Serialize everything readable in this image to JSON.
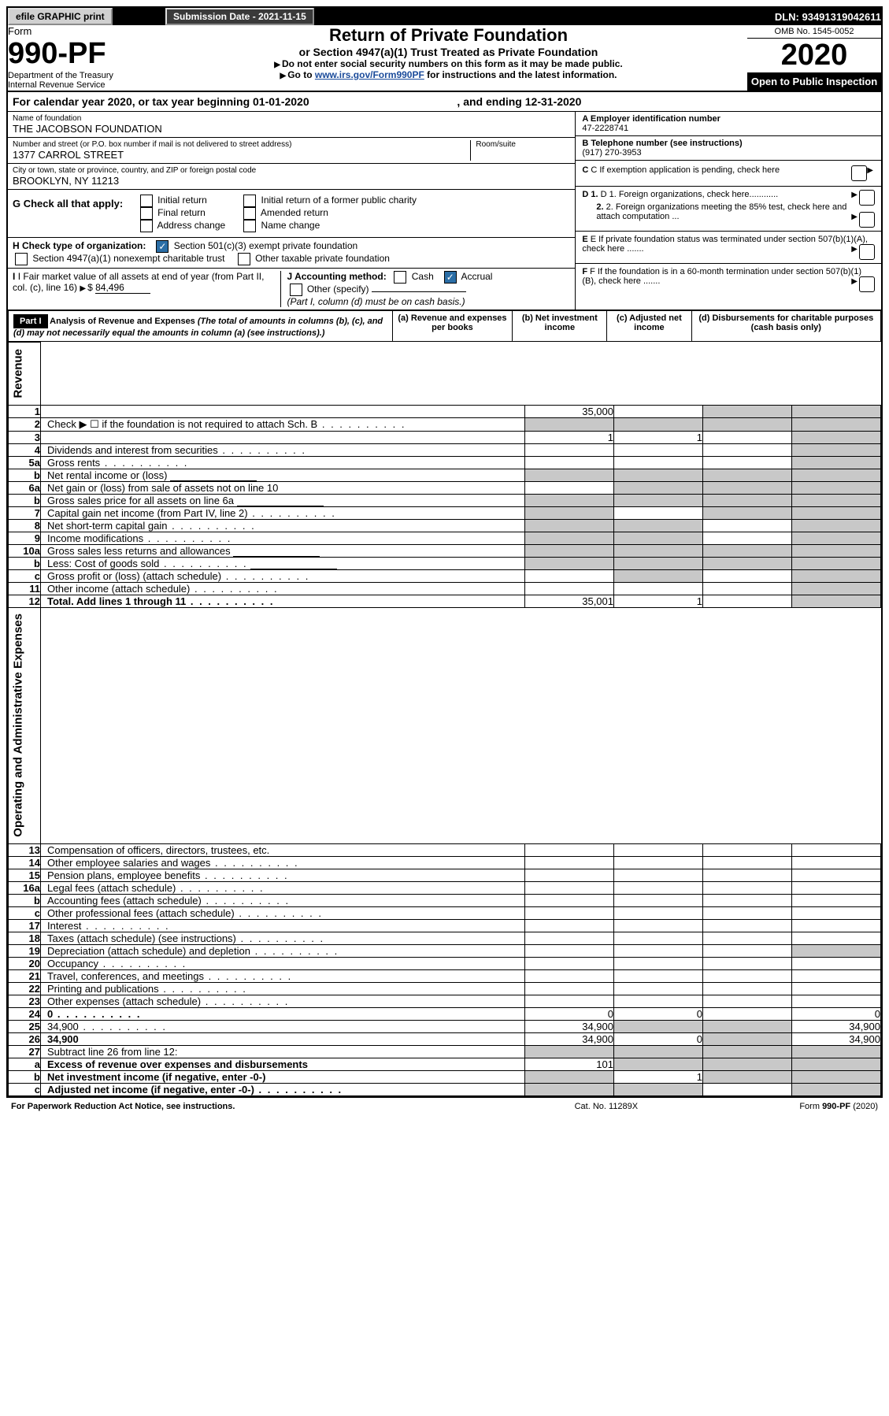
{
  "topbar": {
    "efile": "efile GRAPHIC print",
    "subm_label": "Submission Date - 2021-11-15",
    "dln": "DLN: 93491319042611"
  },
  "header": {
    "form_word": "Form",
    "form_num": "990-PF",
    "dept": "Department of the Treasury\nInternal Revenue Service",
    "title": "Return of Private Foundation",
    "subtitle": "or Section 4947(a)(1) Trust Treated as Private Foundation",
    "instr1": "Do not enter social security numbers on this form as it may be made public.",
    "instr2_pre": "Go to ",
    "instr2_link": "www.irs.gov/Form990PF",
    "instr2_post": " for instructions and the latest information.",
    "omb": "OMB No. 1545-0052",
    "year": "2020",
    "pub": "Open to Public Inspection"
  },
  "cal": {
    "text_pre": "For calendar year 2020, or tax year beginning ",
    "begin": "01-01-2020",
    "mid": ", and ending ",
    "end": "12-31-2020"
  },
  "entity": {
    "name_label": "Name of foundation",
    "name": "THE JACOBSON FOUNDATION",
    "addr_label": "Number and street (or P.O. box number if mail is not delivered to street address)",
    "addr": "1377 CARROL STREET",
    "room_label": "Room/suite",
    "city_label": "City or town, state or province, country, and ZIP or foreign postal code",
    "city": "BROOKLYN, NY  11213",
    "A_label": "A Employer identification number",
    "A": "47-2228741",
    "B_label": "B Telephone number (see instructions)",
    "B": "(917) 270-3953",
    "C": "C If exemption application is pending, check here",
    "D1": "D 1. Foreign organizations, check here............",
    "D2": "2. Foreign organizations meeting the 85% test, check here and attach computation ...",
    "E": "E  If private foundation status was terminated under section 507(b)(1)(A), check here .......",
    "F": "F  If the foundation is in a 60-month termination under section 507(b)(1)(B), check here .......",
    "G_label": "G Check all that apply:",
    "G_opts": [
      "Initial return",
      "Final return",
      "Address change",
      "Initial return of a former public charity",
      "Amended return",
      "Name change"
    ],
    "H_label": "H Check type of organization:",
    "H_opt1": "Section 501(c)(3) exempt private foundation",
    "H_opt2": "Section 4947(a)(1) nonexempt charitable trust",
    "H_opt3": "Other taxable private foundation",
    "I_label": "I Fair market value of all assets at end of year (from Part II, col. (c), line 16)",
    "I_val": "84,496",
    "J_label": "J Accounting method:",
    "J_cash": "Cash",
    "J_accr": "Accrual",
    "J_other": "Other (specify)",
    "J_note": "(Part I, column (d) must be on cash basis.)"
  },
  "part1": {
    "label": "Part I",
    "title": "Analysis of Revenue and Expenses",
    "desc": "(The total of amounts in columns (b), (c), and (d) may not necessarily equal the amounts in column (a) (see instructions).)",
    "col_a": "(a)  Revenue and expenses per books",
    "col_b": "(b)  Net investment income",
    "col_c": "(c)  Adjusted net income",
    "col_d": "(d)  Disbursements for charitable purposes (cash basis only)"
  },
  "sections": {
    "revenue": "Revenue",
    "opex": "Operating and Administrative Expenses"
  },
  "rows": [
    {
      "n": "1",
      "d": "",
      "a": "35,000",
      "b": "",
      "c": "",
      "shade": [
        "c",
        "d"
      ]
    },
    {
      "n": "2",
      "d": "Check ▶ ☐ if the foundation is not required to attach Sch. B",
      "dots": true,
      "vals": false,
      "shade": [
        "a",
        "b",
        "c",
        "d"
      ]
    },
    {
      "n": "3",
      "d": "",
      "a": "1",
      "b": "1",
      "c": "",
      "shade": [
        "d"
      ]
    },
    {
      "n": "4",
      "d": "Dividends and interest from securities",
      "dots": true,
      "shade": [
        "d"
      ]
    },
    {
      "n": "5a",
      "d": "Gross rents",
      "dots": true,
      "shade": [
        "d"
      ]
    },
    {
      "n": "b",
      "d": "Net rental income or (loss)",
      "line": true,
      "shade": [
        "a",
        "b",
        "c",
        "d"
      ]
    },
    {
      "n": "6a",
      "d": "Net gain or (loss) from sale of assets not on line 10",
      "shade": [
        "b",
        "c",
        "d"
      ]
    },
    {
      "n": "b",
      "d": "Gross sales price for all assets on line 6a",
      "line": true,
      "shade": [
        "a",
        "b",
        "c",
        "d"
      ]
    },
    {
      "n": "7",
      "d": "Capital gain net income (from Part IV, line 2)",
      "dots": true,
      "shade": [
        "a",
        "c",
        "d"
      ]
    },
    {
      "n": "8",
      "d": "Net short-term capital gain",
      "dots": true,
      "shade": [
        "a",
        "b",
        "d"
      ]
    },
    {
      "n": "9",
      "d": "Income modifications",
      "dots": true,
      "shade": [
        "a",
        "b",
        "d"
      ]
    },
    {
      "n": "10a",
      "d": "Gross sales less returns and allowances",
      "line": true,
      "shade": [
        "a",
        "b",
        "c",
        "d"
      ]
    },
    {
      "n": "b",
      "d": "Less: Cost of goods sold",
      "dots": true,
      "line": true,
      "shade": [
        "a",
        "b",
        "c",
        "d"
      ]
    },
    {
      "n": "c",
      "d": "Gross profit or (loss) (attach schedule)",
      "dots": true,
      "shade": [
        "b",
        "d"
      ]
    },
    {
      "n": "11",
      "d": "Other income (attach schedule)",
      "dots": true,
      "shade": [
        "d"
      ]
    },
    {
      "n": "12",
      "d": "Total. Add lines 1 through 11",
      "dots": true,
      "b2": true,
      "a": "35,001",
      "b": "1",
      "shade": [
        "d"
      ]
    }
  ],
  "oprows": [
    {
      "n": "13",
      "d": "Compensation of officers, directors, trustees, etc."
    },
    {
      "n": "14",
      "d": "Other employee salaries and wages",
      "dots": true
    },
    {
      "n": "15",
      "d": "Pension plans, employee benefits",
      "dots": true
    },
    {
      "n": "16a",
      "d": "Legal fees (attach schedule)",
      "dots": true
    },
    {
      "n": "b",
      "d": "Accounting fees (attach schedule)",
      "dots": true
    },
    {
      "n": "c",
      "d": "Other professional fees (attach schedule)",
      "dots": true
    },
    {
      "n": "17",
      "d": "Interest",
      "dots": true
    },
    {
      "n": "18",
      "d": "Taxes (attach schedule) (see instructions)",
      "dots": true
    },
    {
      "n": "19",
      "d": "Depreciation (attach schedule) and depletion",
      "dots": true,
      "shade": [
        "d"
      ]
    },
    {
      "n": "20",
      "d": "Occupancy",
      "dots": true
    },
    {
      "n": "21",
      "d": "Travel, conferences, and meetings",
      "dots": true
    },
    {
      "n": "22",
      "d": "Printing and publications",
      "dots": true
    },
    {
      "n": "23",
      "d": "Other expenses (attach schedule)",
      "dots": true
    },
    {
      "n": "24",
      "d": "0",
      "dots": true,
      "b2": true,
      "a": "0",
      "b": "0"
    },
    {
      "n": "25",
      "d": "34,900",
      "dots": true,
      "a": "34,900",
      "shade": [
        "b",
        "c"
      ]
    },
    {
      "n": "26",
      "d": "34,900",
      "b2": true,
      "a": "34,900",
      "b": "0",
      "shade": [
        "c"
      ]
    },
    {
      "n": "27",
      "d": "Subtract line 26 from line 12:",
      "shade": [
        "a",
        "b",
        "c",
        "d"
      ]
    },
    {
      "n": "a",
      "d": "Excess of revenue over expenses and disbursements",
      "b2": true,
      "a": "101",
      "shade": [
        "b",
        "c",
        "d"
      ]
    },
    {
      "n": "b",
      "d": "Net investment income (if negative, enter -0-)",
      "b2": true,
      "b": "1",
      "shade": [
        "a",
        "c",
        "d"
      ]
    },
    {
      "n": "c",
      "d": "Adjusted net income (if negative, enter -0-)",
      "b2": true,
      "dots": true,
      "shade": [
        "a",
        "b",
        "d"
      ]
    }
  ],
  "footer": {
    "left": "For Paperwork Reduction Act Notice, see instructions.",
    "mid": "Cat. No. 11289X",
    "right": "Form 990-PF (2020)"
  }
}
